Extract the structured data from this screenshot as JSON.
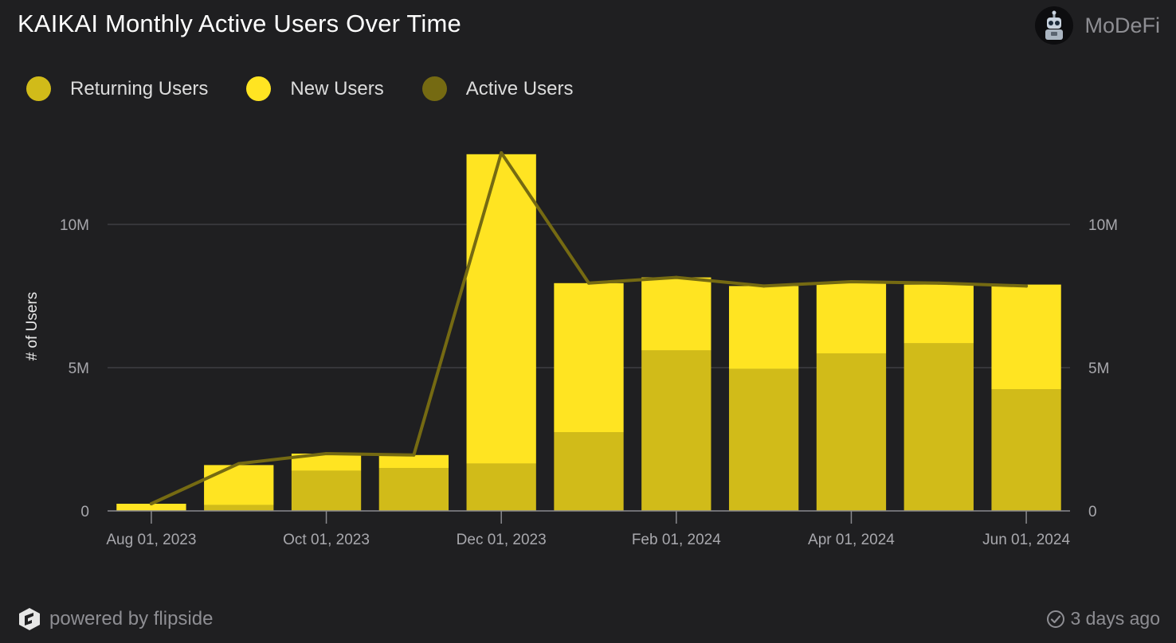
{
  "header": {
    "title": "KAIKAI Monthly Active Users Over Time",
    "author": "MoDeFi",
    "avatar_icon": "robot-avatar-icon"
  },
  "legend": [
    {
      "label": "Returning Users",
      "color": "#d1bb19"
    },
    {
      "label": "New Users",
      "color": "#ffe422"
    },
    {
      "label": "Active Users",
      "color": "#756a12"
    }
  ],
  "footer": {
    "powered_by": "powered by flipside",
    "updated": "3 days ago",
    "flipside_icon": "flipside-logo-icon",
    "check_icon": "check-circle-icon"
  },
  "chart_data": {
    "type": "bar",
    "stacked": true,
    "title": "KAIKAI Monthly Active Users Over Time",
    "ylabel": "# of Users",
    "xlabel": "",
    "categories": [
      "Aug 01, 2023",
      "Sep 01, 2023",
      "Oct 01, 2023",
      "Nov 01, 2023",
      "Dec 01, 2023",
      "Jan 01, 2024",
      "Feb 01, 2024",
      "Mar 01, 2024",
      "Apr 01, 2024",
      "May 01, 2024",
      "Jun 01, 2024"
    ],
    "x_tick_labels": [
      "Aug 01, 2023",
      "Oct 01, 2023",
      "Dec 01, 2023",
      "Feb 01, 2024",
      "Apr 01, 2024",
      "Jun 01, 2024"
    ],
    "series": [
      {
        "name": "Returning Users",
        "type": "bar",
        "color": "#d1bb19",
        "values": [
          0,
          200000,
          1400000,
          1500000,
          1650000,
          2750000,
          5600000,
          4950000,
          5500000,
          5850000,
          4250000
        ]
      },
      {
        "name": "New Users",
        "type": "bar",
        "color": "#ffe422",
        "values": [
          250000,
          1400000,
          600000,
          450000,
          10800000,
          5200000,
          2550000,
          2900000,
          2450000,
          2050000,
          3650000
        ]
      },
      {
        "name": "Active Users",
        "type": "line",
        "color": "#756a12",
        "values": [
          250000,
          1650000,
          2000000,
          1950000,
          12500000,
          7950000,
          8150000,
          7850000,
          8000000,
          7950000,
          7850000
        ]
      }
    ],
    "ylim": [
      0,
      12500000
    ],
    "y_ticks": [
      {
        "value": 0,
        "label": "0"
      },
      {
        "value": 5000000,
        "label": "5M"
      },
      {
        "value": 10000000,
        "label": "10M"
      }
    ],
    "grid": true,
    "legend_position": "top-left"
  }
}
